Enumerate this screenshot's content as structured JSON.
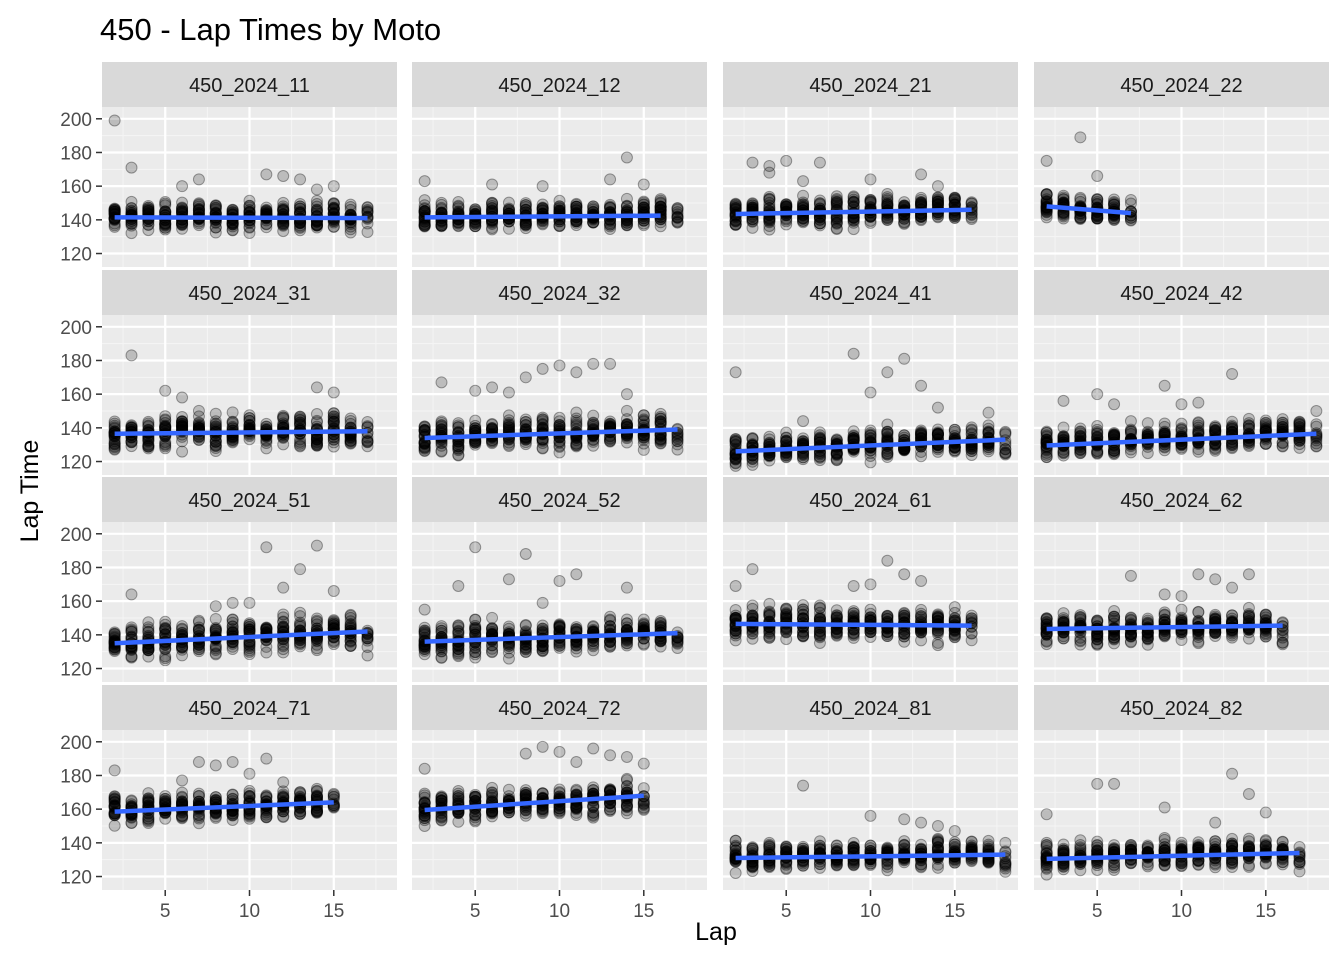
{
  "chart_data": {
    "type": "scatter",
    "title": "450 - Lap Times by Moto",
    "xlabel": "Lap",
    "ylabel": "Lap Time",
    "xlim": [
      1.25,
      18.75
    ],
    "ylim": [
      112,
      207
    ],
    "x_ticks": [
      5,
      10,
      15
    ],
    "y_ticks": [
      120,
      140,
      160,
      180,
      200
    ],
    "grid": true,
    "legend": "none",
    "point_color": "#000000",
    "trend_color": "#3366ff",
    "panel_background": "#ebebeb",
    "strip_background": "#d9d9d9",
    "facets": [
      {
        "label": "450_2024_11",
        "laps": [
          2,
          17
        ],
        "center": [
          142,
          142,
          142,
          142,
          142,
          142,
          142,
          142,
          142,
          142,
          142,
          142,
          142,
          142,
          142,
          142
        ],
        "spread": 9,
        "outliers": [
          [
            2,
            199
          ],
          [
            3,
            171
          ],
          [
            6,
            160
          ],
          [
            7,
            164
          ],
          [
            11,
            167
          ],
          [
            12,
            166
          ],
          [
            13,
            164
          ],
          [
            14,
            158
          ],
          [
            15,
            160
          ]
        ],
        "trend": [
          [
            2,
            141.5
          ],
          [
            17,
            141.0
          ]
        ]
      },
      {
        "label": "450_2024_12",
        "laps": [
          2,
          17
        ],
        "center": [
          142,
          142,
          142,
          142,
          142,
          142,
          142,
          142,
          142,
          142,
          142,
          142,
          143,
          144,
          145,
          144
        ],
        "spread": 9,
        "outliers": [
          [
            2,
            163
          ],
          [
            6,
            161
          ],
          [
            9,
            160
          ],
          [
            13,
            164
          ],
          [
            14,
            177
          ],
          [
            15,
            161
          ]
        ],
        "trend": [
          [
            2,
            141.5
          ],
          [
            16,
            142.5
          ]
        ]
      },
      {
        "label": "450_2024_21",
        "laps": [
          2,
          16
        ],
        "center": [
          143,
          144,
          144,
          144,
          145,
          145,
          145,
          145,
          146,
          146,
          146,
          147,
          147,
          147,
          146
        ],
        "spread": 10,
        "outliers": [
          [
            3,
            174
          ],
          [
            4,
            172
          ],
          [
            4,
            168
          ],
          [
            5,
            175
          ],
          [
            7,
            174
          ],
          [
            6,
            163
          ],
          [
            10,
            164
          ],
          [
            13,
            167
          ],
          [
            14,
            160
          ]
        ],
        "trend": [
          [
            2,
            143.5
          ],
          [
            16,
            146.0
          ]
        ]
      },
      {
        "label": "450_2024_22",
        "laps": [
          2,
          7
        ],
        "center": [
          149,
          147,
          146,
          146,
          145,
          142
        ],
        "spread": 9,
        "outliers": [
          [
            2,
            175
          ],
          [
            4,
            189
          ],
          [
            5,
            166
          ]
        ],
        "trend": [
          [
            2,
            148.0
          ],
          [
            7,
            144.0
          ]
        ]
      },
      {
        "label": "450_2024_31",
        "laps": [
          2,
          17
        ],
        "center": [
          136,
          137,
          137,
          138,
          138,
          138,
          138,
          138,
          138,
          138,
          138,
          139,
          139,
          139,
          139,
          137
        ],
        "spread": 11,
        "outliers": [
          [
            3,
            183
          ],
          [
            5,
            162
          ],
          [
            6,
            158
          ],
          [
            14,
            164
          ],
          [
            15,
            161
          ]
        ],
        "trend": [
          [
            2,
            136.5
          ],
          [
            17,
            138.0
          ]
        ]
      },
      {
        "label": "450_2024_32",
        "laps": [
          2,
          17
        ],
        "center": [
          134,
          135,
          135,
          135,
          136,
          136,
          136,
          136,
          137,
          137,
          137,
          138,
          138,
          139,
          139,
          136
        ],
        "spread": 11,
        "outliers": [
          [
            3,
            167
          ],
          [
            5,
            162
          ],
          [
            6,
            164
          ],
          [
            7,
            161
          ],
          [
            8,
            170
          ],
          [
            9,
            175
          ],
          [
            10,
            177
          ],
          [
            11,
            173
          ],
          [
            12,
            178
          ],
          [
            13,
            178
          ],
          [
            14,
            160
          ]
        ],
        "trend": [
          [
            2,
            134.0
          ],
          [
            17,
            139.0
          ]
        ]
      },
      {
        "label": "450_2024_41",
        "laps": [
          2,
          18
        ],
        "center": [
          126,
          127,
          127,
          128,
          128,
          129,
          129,
          130,
          130,
          131,
          131,
          132,
          132,
          132,
          133,
          133,
          132
        ],
        "spread": 10,
        "outliers": [
          [
            2,
            173
          ],
          [
            6,
            144
          ],
          [
            9,
            184
          ],
          [
            10,
            161
          ],
          [
            11,
            173
          ],
          [
            12,
            181
          ],
          [
            13,
            165
          ],
          [
            14,
            152
          ],
          [
            17,
            149
          ]
        ],
        "trend": [
          [
            2,
            126.0
          ],
          [
            18,
            133.0
          ]
        ]
      },
      {
        "label": "450_2024_42",
        "laps": [
          2,
          18
        ],
        "center": [
          130,
          131,
          131,
          132,
          132,
          133,
          133,
          134,
          134,
          135,
          135,
          136,
          136,
          137,
          137,
          137,
          136
        ],
        "spread": 10,
        "outliers": [
          [
            3,
            156
          ],
          [
            5,
            160
          ],
          [
            6,
            154
          ],
          [
            9,
            165
          ],
          [
            10,
            154
          ],
          [
            11,
            155
          ],
          [
            13,
            172
          ],
          [
            18,
            150
          ]
        ],
        "trend": [
          [
            2,
            129.5
          ],
          [
            18,
            136.5
          ]
        ]
      },
      {
        "label": "450_2024_51",
        "laps": [
          2,
          17
        ],
        "center": [
          135,
          136,
          136,
          137,
          137,
          138,
          138,
          139,
          139,
          140,
          140,
          141,
          141,
          142,
          142,
          137
        ],
        "spread": 11,
        "outliers": [
          [
            3,
            164
          ],
          [
            8,
            157
          ],
          [
            9,
            159
          ],
          [
            10,
            159
          ],
          [
            11,
            192
          ],
          [
            12,
            168
          ],
          [
            13,
            179
          ],
          [
            14,
            193
          ],
          [
            15,
            166
          ]
        ],
        "trend": [
          [
            2,
            135.0
          ],
          [
            17,
            142.0
          ]
        ]
      },
      {
        "label": "450_2024_52",
        "laps": [
          2,
          17
        ],
        "center": [
          136,
          137,
          137,
          137,
          138,
          138,
          138,
          139,
          139,
          139,
          140,
          140,
          141,
          141,
          141,
          140
        ],
        "spread": 11,
        "outliers": [
          [
            2,
            155
          ],
          [
            4,
            169
          ],
          [
            5,
            192
          ],
          [
            7,
            173
          ],
          [
            8,
            188
          ],
          [
            9,
            159
          ],
          [
            10,
            172
          ],
          [
            11,
            176
          ],
          [
            14,
            168
          ]
        ],
        "trend": [
          [
            2,
            136.0
          ],
          [
            17,
            141.0
          ]
        ]
      },
      {
        "label": "450_2024_61",
        "laps": [
          2,
          16
        ],
        "center": [
          146,
          147,
          147,
          147,
          147,
          147,
          147,
          147,
          147,
          146,
          146,
          146,
          146,
          146,
          144
        ],
        "spread": 11,
        "outliers": [
          [
            2,
            169
          ],
          [
            3,
            179
          ],
          [
            9,
            169
          ],
          [
            10,
            170
          ],
          [
            11,
            184
          ],
          [
            12,
            176
          ],
          [
            13,
            172
          ]
        ],
        "trend": [
          [
            2,
            146.5
          ],
          [
            16,
            145.5
          ]
        ]
      },
      {
        "label": "450_2024_62",
        "laps": [
          2,
          16
        ],
        "center": [
          144,
          144,
          144,
          144,
          144,
          144,
          144,
          145,
          145,
          145,
          145,
          145,
          145,
          145,
          140
        ],
        "spread": 10,
        "outliers": [
          [
            7,
            175
          ],
          [
            9,
            164
          ],
          [
            10,
            163
          ],
          [
            11,
            176
          ],
          [
            12,
            173
          ],
          [
            13,
            168
          ],
          [
            14,
            176
          ]
        ],
        "trend": [
          [
            2,
            143.5
          ],
          [
            16,
            145.5
          ]
        ]
      },
      {
        "label": "450_2024_71",
        "laps": [
          2,
          15
        ],
        "center": [
          160,
          160,
          160,
          161,
          161,
          161,
          162,
          162,
          162,
          162,
          163,
          163,
          164,
          163
        ],
        "spread": 9,
        "outliers": [
          [
            2,
            183
          ],
          [
            6,
            177
          ],
          [
            7,
            188
          ],
          [
            8,
            186
          ],
          [
            9,
            188
          ],
          [
            10,
            181
          ],
          [
            11,
            190
          ],
          [
            12,
            176
          ]
        ],
        "trend": [
          [
            2,
            158.5
          ],
          [
            15,
            164.0
          ]
        ]
      },
      {
        "label": "450_2024_72",
        "laps": [
          2,
          15
        ],
        "center": [
          161,
          161,
          162,
          162,
          163,
          163,
          164,
          164,
          165,
          165,
          166,
          166,
          167,
          164
        ],
        "spread": 10,
        "outliers": [
          [
            2,
            184
          ],
          [
            8,
            193
          ],
          [
            9,
            197
          ],
          [
            10,
            194
          ],
          [
            11,
            188
          ],
          [
            12,
            196
          ],
          [
            13,
            192
          ],
          [
            14,
            191
          ],
          [
            15,
            187
          ]
        ],
        "trend": [
          [
            2,
            159.5
          ],
          [
            15,
            168.0
          ]
        ]
      },
      {
        "label": "450_2024_81",
        "laps": [
          2,
          18
        ],
        "center": [
          132,
          132,
          132,
          132,
          132,
          133,
          133,
          133,
          133,
          133,
          133,
          133,
          134,
          134,
          134,
          134,
          129
        ],
        "spread": 9,
        "outliers": [
          [
            6,
            174
          ],
          [
            10,
            156
          ],
          [
            12,
            154
          ],
          [
            13,
            152
          ],
          [
            14,
            150
          ],
          [
            15,
            147
          ],
          [
            18,
            140
          ]
        ],
        "trend": [
          [
            2,
            131.0
          ],
          [
            18,
            133.0
          ]
        ]
      },
      {
        "label": "450_2024_82",
        "laps": [
          2,
          17
        ],
        "center": [
          131,
          131,
          132,
          132,
          132,
          133,
          133,
          133,
          133,
          134,
          134,
          134,
          134,
          135,
          135,
          132
        ],
        "spread": 9,
        "outliers": [
          [
            2,
            157
          ],
          [
            5,
            175
          ],
          [
            6,
            175
          ],
          [
            9,
            161
          ],
          [
            12,
            152
          ],
          [
            13,
            181
          ],
          [
            14,
            169
          ],
          [
            15,
            158
          ]
        ],
        "trend": [
          [
            2,
            130.5
          ],
          [
            17,
            134.0
          ]
        ]
      }
    ]
  }
}
